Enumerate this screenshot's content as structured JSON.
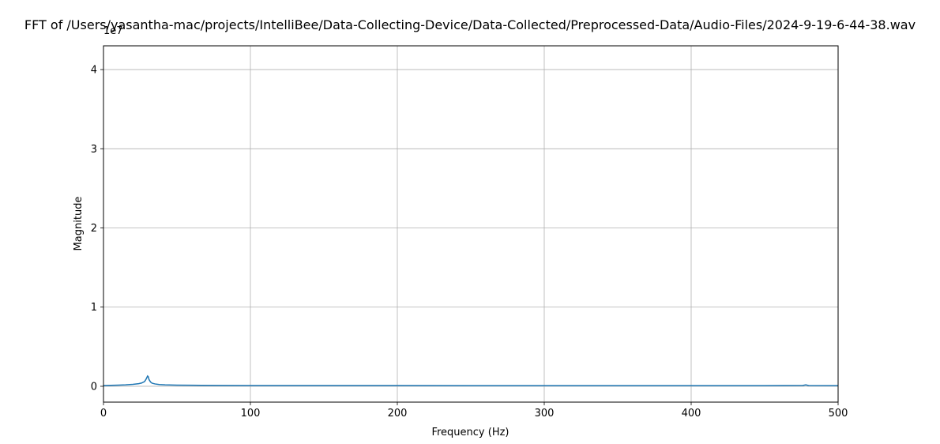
{
  "chart_data": {
    "type": "line",
    "title": "FFT of /Users/yasantha-mac/projects/IntelliBee/Data-Collecting-Device/Data-Collected/Preprocessed-Data/Audio-Files/2024-9-19-6-44-38.wav",
    "xlabel": "Frequency (Hz)",
    "ylabel": "Magnitude",
    "y_offset_label": "1e7",
    "xlim": [
      0,
      500
    ],
    "ylim": [
      -2000000,
      43000000
    ],
    "xticks": [
      0,
      100,
      200,
      300,
      400,
      500
    ],
    "xtick_labels": [
      "0",
      "100",
      "200",
      "300",
      "400",
      "500"
    ],
    "yticks": [
      0,
      10000000,
      20000000,
      30000000,
      40000000
    ],
    "ytick_labels": [
      "0",
      "1",
      "2",
      "3",
      "4"
    ],
    "grid": true,
    "line_color": "#1f77b4",
    "series": [
      {
        "x": [
          0,
          5,
          10,
          15,
          20,
          24,
          26,
          28,
          29,
          30,
          30.5,
          31,
          32,
          33,
          35,
          38,
          42,
          50,
          60,
          80,
          100,
          150,
          200,
          250,
          300,
          350,
          400,
          450,
          476,
          478,
          480,
          500
        ],
        "y": [
          100000,
          120000,
          150000,
          180000,
          250000,
          330000,
          420000,
          600000,
          900000,
          1300000,
          1200000,
          850000,
          550000,
          400000,
          300000,
          220000,
          180000,
          150000,
          130000,
          110000,
          100000,
          90000,
          90000,
          85000,
          85000,
          85000,
          85000,
          85000,
          110000,
          180000,
          100000,
          85000
        ]
      }
    ]
  }
}
